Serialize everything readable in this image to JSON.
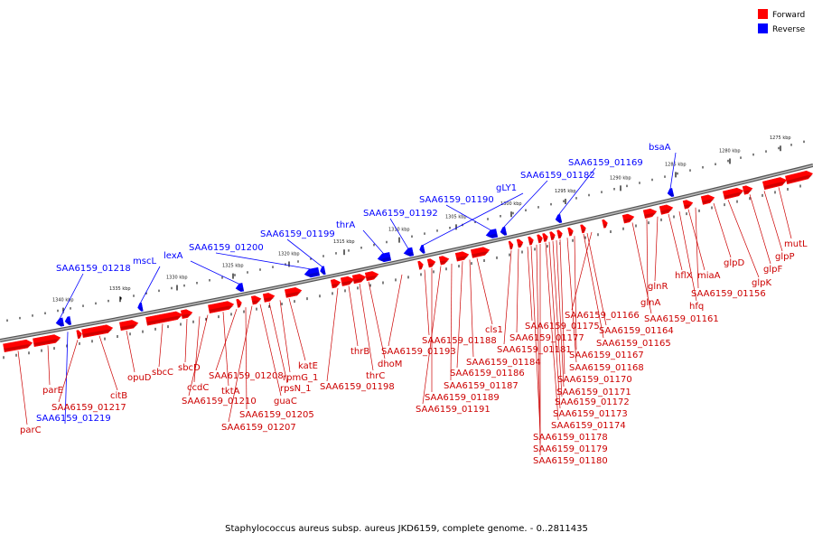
{
  "caption": "Staphylococcus aureus subsp. aureus JKD6159, complete genome. - 0..2811435",
  "legend": {
    "forward_label": "Forward",
    "reverse_label": "Reverse",
    "forward_color": "#ff0000",
    "reverse_color": "#0000ff"
  },
  "colors": {
    "forward": "#ff0000",
    "reverse": "#0000ff",
    "backbone": "#777777"
  },
  "scale_ticks": [
    "1275 kbp",
    "1280 kbp",
    "1285 kbp",
    "1290 kbp",
    "1295 kbp",
    "1300 kbp",
    "1305 kbp",
    "1310 kbp",
    "1315 kbp",
    "1320 kbp",
    "1325 kbp",
    "1330 kbp",
    "1335 kbp",
    "1340 kbp"
  ],
  "reverse_genes": [
    "SAA6159_01218",
    "mscL",
    "lexA",
    "SAA6159_01200",
    "SAA6159_01199",
    "thrA",
    "SAA6159_01192",
    "SAA6159_01190",
    "gLY1",
    "SAA6159_01182",
    "SAA6159_01169",
    "bsaA",
    "SAA6159_01219"
  ],
  "forward_genes": [
    "parC",
    "parE",
    "SAA6159_01217",
    "citB",
    "opuD",
    "sbcC",
    "sbcD",
    "ccdC",
    "tktA",
    "SAA6159_01210",
    "SAA6159_01208",
    "SAA6159_01205",
    "SAA6159_01207",
    "guaC",
    "rpsN_1",
    "rpmG_1",
    "katE",
    "SAA6159_01198",
    "thrB",
    "thrC",
    "dhoM",
    "SAA6159_01193",
    "SAA6159_01188",
    "cls1",
    "SAA6159_01189",
    "SAA6159_01191",
    "SAA6159_01187",
    "SAA6159_01186",
    "SAA6159_01184",
    "SAA6159_01181",
    "SAA6159_01177",
    "SAA6159_01175",
    "SAA6159_01178",
    "SAA6159_01179",
    "SAA6159_01180",
    "SAA6159_01174",
    "SAA6159_01173",
    "SAA6159_01172",
    "SAA6159_01171",
    "SAA6159_01170",
    "SAA6159_01168",
    "SAA6159_01167",
    "SAA6159_01165",
    "SAA6159_01164",
    "SAA6159_01166",
    "SAA6159_01161",
    "glnA",
    "glnR",
    "hflX",
    "hfq",
    "miaA",
    "SAA6159_01156",
    "glpD",
    "glpK",
    "glpF",
    "glpP",
    "mutL"
  ]
}
